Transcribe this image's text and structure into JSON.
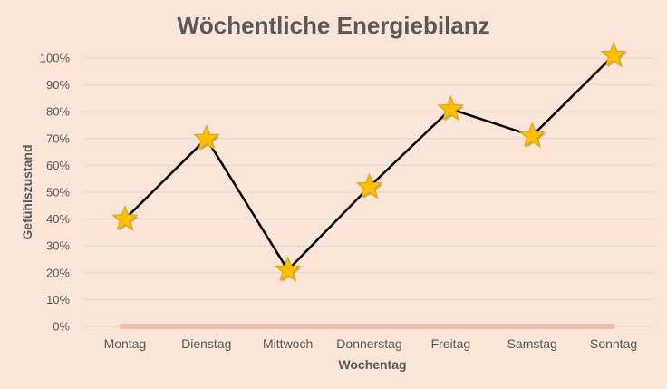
{
  "chart_data": {
    "type": "line",
    "title": "Wöchentliche Energiebilanz",
    "xlabel": "Wochentag",
    "ylabel": "Gefühlszustand",
    "categories": [
      "Montag",
      "Dienstag",
      "Mittwoch",
      "Donnerstag",
      "Freitag",
      "Samstag",
      "Sonntag"
    ],
    "series": [
      {
        "values": [
          40,
          70,
          21,
          52,
          81,
          71,
          101
        ],
        "marker": "star"
      }
    ],
    "yticks": [
      "0%",
      "10%",
      "20%",
      "30%",
      "40%",
      "50%",
      "60%",
      "70%",
      "80%",
      "90%",
      "100%"
    ],
    "ylim": [
      0,
      100
    ],
    "grid": true,
    "legend": "none"
  },
  "colors": {
    "background": "#fbe5d8",
    "line": "#000000",
    "marker_fill": "#ffc000",
    "marker_stroke": "#e0a100",
    "baseline_band": "#f4b9a0",
    "text": "#595959",
    "grid": "#d9d9d9"
  }
}
